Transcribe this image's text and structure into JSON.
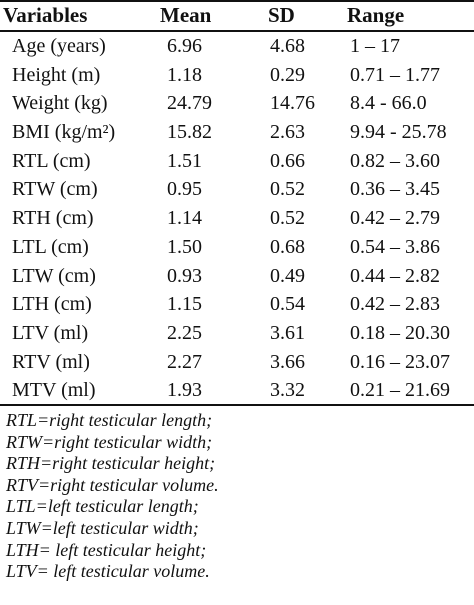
{
  "table": {
    "headers": {
      "variable": "Variables",
      "mean": "Mean",
      "sd": "SD",
      "range": "Range"
    },
    "rows": [
      {
        "variable": "Age (years)",
        "mean": "6.96",
        "sd": "4.68",
        "range": "1 – 17"
      },
      {
        "variable": "Height (m)",
        "mean": "1.18",
        "sd": "0.29",
        "range": "0.71 – 1.77"
      },
      {
        "variable": "Weight (kg)",
        "mean": "24.79",
        "sd": "14.76",
        "range": "8.4 - 66.0"
      },
      {
        "variable": "BMI (kg/m²)",
        "mean": "15.82",
        "sd": "2.63",
        "range": "9.94 - 25.78"
      },
      {
        "variable": "RTL (cm)",
        "mean": "1.51",
        "sd": "0.66",
        "range": "0.82 – 3.60"
      },
      {
        "variable": "RTW (cm)",
        "mean": "0.95",
        "sd": "0.52",
        "range": "0.36 – 3.45"
      },
      {
        "variable": "RTH (cm)",
        "mean": "1.14",
        "sd": "0.52",
        "range": "0.42 – 2.79"
      },
      {
        "variable": "LTL (cm)",
        "mean": "1.50",
        "sd": "0.68",
        "range": "0.54 – 3.86"
      },
      {
        "variable": "LTW (cm)",
        "mean": "0.93",
        "sd": "0.49",
        "range": "0.44 – 2.82"
      },
      {
        "variable": "LTH (cm)",
        "mean": "1.15",
        "sd": "0.54",
        "range": "0.42 – 2.83"
      },
      {
        "variable": "LTV (ml)",
        "mean": "2.25",
        "sd": "3.61",
        "range": "0.18 – 20.30"
      },
      {
        "variable": "RTV (ml)",
        "mean": "2.27",
        "sd": "3.66",
        "range": "0.16 – 23.07"
      },
      {
        "variable": "MTV (ml)",
        "mean": "1.93",
        "sd": "3.32",
        "range": "0.21 – 21.69"
      }
    ]
  },
  "footnotes": [
    "RTL=right testicular length;",
    "RTW=right testicular width;",
    "RTH=right testicular height;",
    "RTV=right testicular volume.",
    "LTL=left testicular length;",
    "LTW=left testicular width;",
    "LTH= left testicular height;",
    "LTV= left testicular volume."
  ]
}
